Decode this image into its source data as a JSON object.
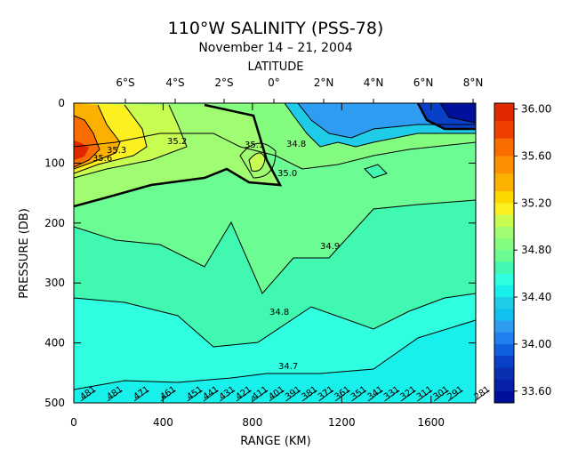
{
  "chart_data": {
    "type": "heatmap",
    "title": "110°W SALINITY (PSS-78)",
    "subtitle": "November 14 – 21, 2004",
    "top_axis_label": "LATITUDE",
    "top_ticks": [
      "6°S",
      "4°S",
      "2°S",
      "0°",
      "2°N",
      "4°N",
      "6°N",
      "8°N"
    ],
    "xlabel": "RANGE (KM)",
    "ylabel": "PRESSURE (DB)",
    "x_ticks": [
      0,
      400,
      800,
      1200,
      1600
    ],
    "y_ticks": [
      0,
      100,
      200,
      300,
      400,
      500
    ],
    "xlim": [
      0,
      1800
    ],
    "ylim": [
      500,
      0
    ],
    "colorbar_ticks": [
      "36.00",
      "35.60",
      "35.20",
      "34.80",
      "34.40",
      "34.00",
      "33.60"
    ],
    "colorbar_range": [
      33.5,
      36.05
    ],
    "contour_labels": [
      "35.3",
      "35.6",
      "35.2",
      "35.1",
      "34.8",
      "35.0",
      "34.9",
      "34.8",
      "34.7"
    ],
    "station_labels": [
      "481",
      "481",
      "471",
      "461",
      "451",
      "441",
      "431",
      "421",
      "411",
      "401",
      "391",
      "381",
      "371",
      "361",
      "351",
      "341",
      "331",
      "321",
      "311",
      "301",
      "291",
      "281"
    ]
  }
}
